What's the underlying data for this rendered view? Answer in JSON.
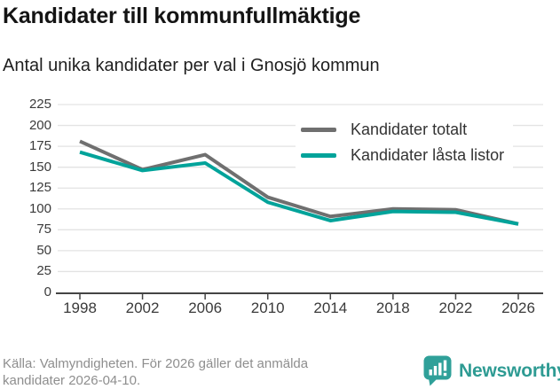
{
  "title": "Kandidater till kommunfullmäktige",
  "subtitle": "Antal unika kandidater per val i Gnosjö kommun",
  "footer": {
    "line1": "Källa: Valmyndigheten. För 2026 gäller det anmälda",
    "line2": "kandidater 2026-04-10."
  },
  "brand": {
    "name": "Newsworthy",
    "color": "#2e9b93",
    "icon": "newsworthy-speech-bubble-barchart-icon",
    "icon_color": "#2fa099"
  },
  "colors": {
    "total_line": "#6f6f6f",
    "locked_line": "#00a39a",
    "grid": "#e3e3e3",
    "axis": "#444444",
    "tick_text": "#3a3a3a"
  },
  "chart_data": {
    "type": "line",
    "x": [
      1998,
      2002,
      2006,
      2010,
      2014,
      2018,
      2022,
      2026
    ],
    "series": [
      {
        "name": "Kandidater totalt",
        "color": "#6f6f6f",
        "values": [
          181,
          147,
          165,
          114,
          91,
          100,
          99,
          82
        ]
      },
      {
        "name": "Kandidater låsta listor",
        "color": "#00a39a",
        "values": [
          168,
          146,
          155,
          108,
          86,
          97,
          96,
          82
        ]
      }
    ],
    "title": "Kandidater till kommunfullmäktige",
    "subtitle": "Antal unika kandidater per val i Gnosjö kommun",
    "xlabel": "",
    "ylabel": "",
    "ylim": [
      0,
      225
    ],
    "yticks": [
      0,
      25,
      50,
      75,
      100,
      125,
      150,
      175,
      200,
      225
    ],
    "grid": "horizontal",
    "legend_position": "top-right-inside",
    "line_width": 4
  }
}
